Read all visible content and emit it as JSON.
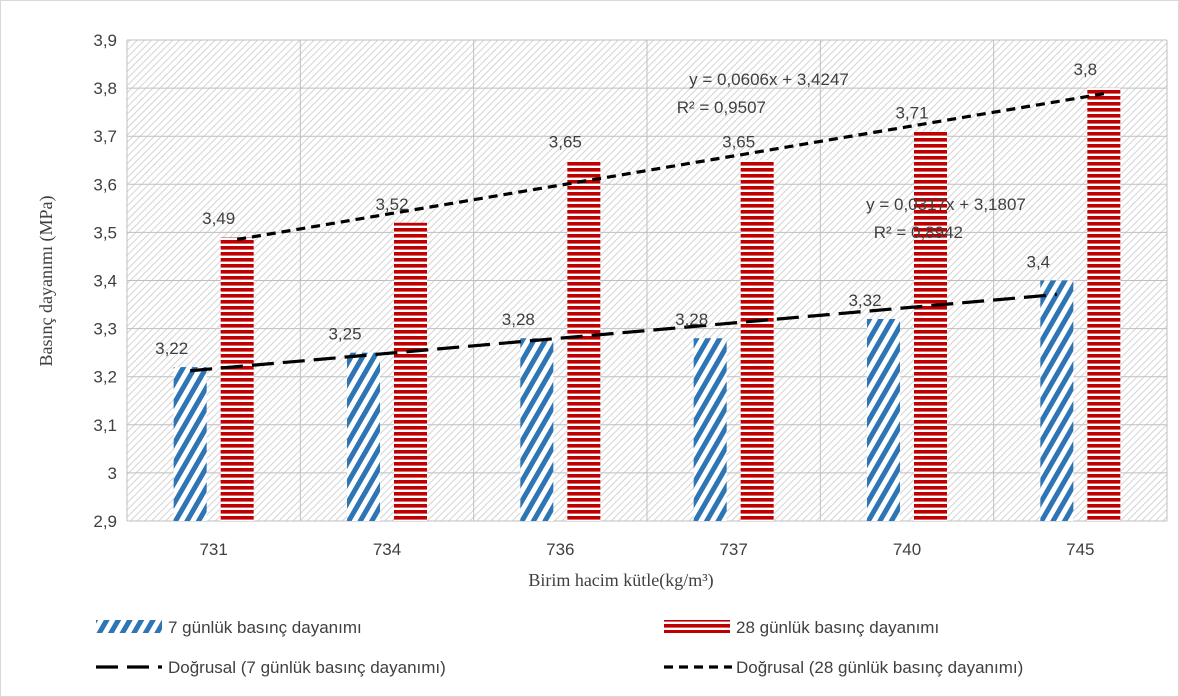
{
  "chart_data": {
    "type": "bar",
    "categories": [
      "731",
      "734",
      "736",
      "737",
      "740",
      "745"
    ],
    "series": [
      {
        "name": "7 günlük basınç dayanımı",
        "values": [
          3.22,
          3.25,
          3.28,
          3.28,
          3.32,
          3.4
        ],
        "labels": [
          "3,22",
          "3,25",
          "3,28",
          "3,28",
          "3,32",
          "3,4"
        ],
        "color": "#2E75B6",
        "pattern": "diagonal-stripes"
      },
      {
        "name": "28 günlük basınç dayanımı",
        "values": [
          3.49,
          3.52,
          3.65,
          3.65,
          3.71,
          3.8
        ],
        "labels": [
          "3,49",
          "3,52",
          "3,65",
          "3,65",
          "3,71",
          "3,8"
        ],
        "color": "#C00000",
        "pattern": "horizontal-stripes"
      }
    ],
    "trendlines": [
      {
        "name": "Doğrusal (7 günlük basınç dayanımı)",
        "slope": 0.0317,
        "intercept": 3.1807,
        "equation": "y = 0,0317x + 3,1807",
        "r2": "R² = 0,8942",
        "style": "long-dash"
      },
      {
        "name": "Doğrusal (28 günlük basınç dayanımı)",
        "slope": 0.0606,
        "intercept": 3.4247,
        "equation": "y = 0,0606x + 3,4247",
        "r2": "R² = 0,9507",
        "style": "short-dash"
      }
    ],
    "xlabel": "Birim hacim kütle(kg/m³)",
    "ylabel": "Basınç dayanımı (MPa)",
    "ylim": [
      2.9,
      3.9
    ],
    "yticks": [
      2.9,
      3.0,
      3.1,
      3.2,
      3.3,
      3.4,
      3.5,
      3.6,
      3.7,
      3.8,
      3.9
    ],
    "ytick_labels": [
      "2,9",
      "3",
      "3,1",
      "3,2",
      "3,3",
      "3,4",
      "3,5",
      "3,6",
      "3,7",
      "3,8",
      "3,9"
    ],
    "grid": true,
    "legend_position": "bottom"
  }
}
